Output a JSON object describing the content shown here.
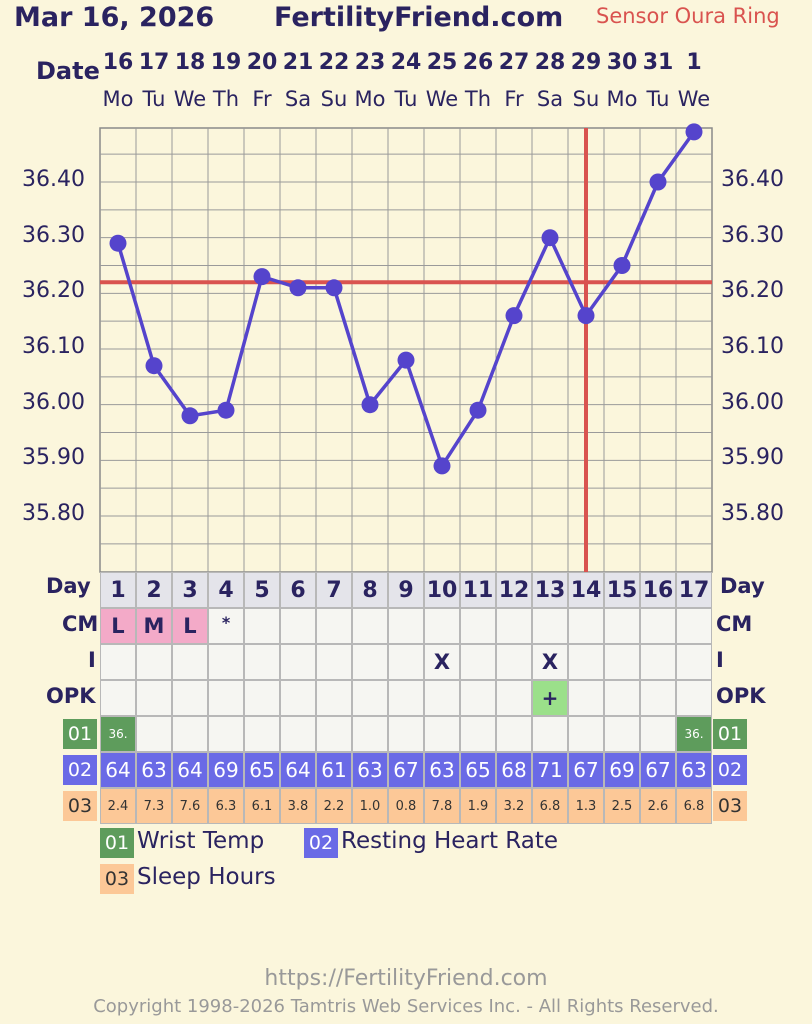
{
  "header": {
    "date": "Mar 16, 2026",
    "site": "FertilityFriend.com",
    "sensor": "Sensor Oura Ring"
  },
  "labels": {
    "date": "Date",
    "day": "Day",
    "cm": "CM",
    "i": "I",
    "opk": "OPK"
  },
  "colors": {
    "temp_line": "#5544cc",
    "coverline": "#d9534f",
    "ovulation_line": "#d9534f",
    "grid": "#8a8a8a"
  },
  "chart_data": {
    "type": "line",
    "title": "",
    "xlabel": "Date",
    "ylabel": "",
    "dates": [
      "16",
      "17",
      "18",
      "19",
      "20",
      "21",
      "22",
      "23",
      "24",
      "25",
      "26",
      "27",
      "28",
      "29",
      "30",
      "31",
      "1"
    ],
    "weekdays": [
      "Mo",
      "Tu",
      "We",
      "Th",
      "Fr",
      "Sa",
      "Su",
      "Mo",
      "Tu",
      "We",
      "Th",
      "Fr",
      "Sa",
      "Su",
      "Mo",
      "Tu",
      "We"
    ],
    "cycle_days": [
      1,
      2,
      3,
      4,
      5,
      6,
      7,
      8,
      9,
      10,
      11,
      12,
      13,
      14,
      15,
      16,
      17
    ],
    "temperatures": [
      36.29,
      36.07,
      35.98,
      35.99,
      36.23,
      36.21,
      36.21,
      36.0,
      36.08,
      35.89,
      35.99,
      36.16,
      36.3,
      36.16,
      36.25,
      36.4,
      36.49
    ],
    "y_ticks": [
      "36.40",
      "36.30",
      "36.20",
      "36.10",
      "36.00",
      "35.90",
      "35.80"
    ],
    "ylim": [
      35.7,
      36.51
    ],
    "coverline": 36.22,
    "ovulation_day": 14,
    "grid": true
  },
  "rows": {
    "cm": [
      "L",
      "M",
      "L",
      "*",
      "",
      "",
      "",
      "",
      "",
      "",
      "",
      "",
      "",
      "",
      "",
      "",
      ""
    ],
    "intercourse": [
      "",
      "",
      "",
      "",
      "",
      "",
      "",
      "",
      "",
      "X",
      "",
      "",
      "X",
      "",
      "",
      "",
      ""
    ],
    "opk": [
      "",
      "",
      "",
      "",
      "",
      "",
      "",
      "",
      "",
      "",
      "",
      "",
      "+",
      "",
      "",
      "",
      ""
    ],
    "wrist_temp": [
      "36.",
      "",
      "",
      "",
      "",
      "",
      "",
      "",
      "",
      "",
      "",
      "",
      "",
      "",
      "",
      "",
      "36."
    ],
    "resting_hr": [
      "64",
      "63",
      "64",
      "69",
      "65",
      "64",
      "61",
      "63",
      "67",
      "63",
      "65",
      "68",
      "71",
      "67",
      "69",
      "67",
      "63"
    ],
    "sleep_hours": [
      "2.4",
      "7.3",
      "7.6",
      "6.3",
      "6.1",
      "3.8",
      "2.2",
      "1.0",
      "0.8",
      "7.8",
      "1.9",
      "3.2",
      "6.8",
      "1.3",
      "2.5",
      "2.6",
      "6.8"
    ]
  },
  "badges": {
    "wrist": "01",
    "rhr": "02",
    "sleep": "03"
  },
  "legend": {
    "wrist": "Wrist Temp",
    "rhr": "Resting Heart Rate",
    "sleep": "Sleep Hours"
  },
  "footer": {
    "url": "https://FertilityFriend.com",
    "copyright": "Copyright 1998-2026 Tamtris Web Services Inc. - All Rights Reserved."
  }
}
